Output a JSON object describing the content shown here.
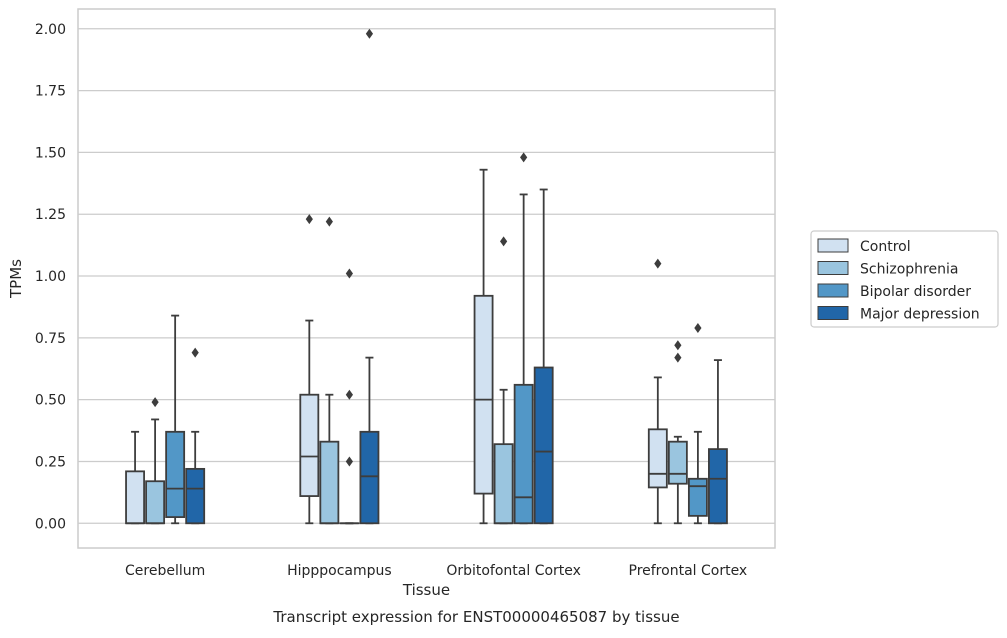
{
  "chart_data": {
    "type": "boxplot",
    "title": "",
    "caption": "Transcript expression for ENST00000465087 by tissue",
    "xlabel": "Tissue",
    "ylabel": "TPMs",
    "ylim": [
      -0.1,
      2.08
    ],
    "yticks": [
      "0.00",
      "0.25",
      "0.50",
      "0.75",
      "1.00",
      "1.25",
      "1.50",
      "1.75",
      "2.00"
    ],
    "grid": "horizontal",
    "legend_position": "outside-right",
    "categories": [
      "Cerebellum",
      "Hipppocampus",
      "Orbitofontal Cortex",
      "Prefrontal Cortex"
    ],
    "series": [
      {
        "name": "Control",
        "color": "#d1e1f1",
        "boxes": [
          {
            "whisker_low": 0,
            "q1": 0,
            "median": 0,
            "q3": 0.21,
            "whisker_high": 0.37,
            "outliers": []
          },
          {
            "whisker_low": 0,
            "q1": 0.11,
            "median": 0.27,
            "q3": 0.52,
            "whisker_high": 0.82,
            "outliers": [
              1.23
            ]
          },
          {
            "whisker_low": 0,
            "q1": 0.12,
            "median": 0.5,
            "q3": 0.92,
            "whisker_high": 1.43,
            "outliers": []
          },
          {
            "whisker_low": 0,
            "q1": 0.145,
            "median": 0.2,
            "q3": 0.38,
            "whisker_high": 0.59,
            "outliers": [
              1.05
            ]
          }
        ]
      },
      {
        "name": "Schizophrenia",
        "color": "#9ac5df",
        "boxes": [
          {
            "whisker_low": 0,
            "q1": 0,
            "median": 0,
            "q3": 0.17,
            "whisker_high": 0.42,
            "outliers": [
              0.49
            ]
          },
          {
            "whisker_low": 0,
            "q1": 0,
            "median": 0,
            "q3": 0.33,
            "whisker_high": 0.52,
            "outliers": [
              1.22
            ]
          },
          {
            "whisker_low": 0,
            "q1": 0,
            "median": 0,
            "q3": 0.32,
            "whisker_high": 0.54,
            "outliers": [
              1.14
            ]
          },
          {
            "whisker_low": 0,
            "q1": 0.16,
            "median": 0.2,
            "q3": 0.33,
            "whisker_high": 0.35,
            "outliers": [
              0.67,
              0.72
            ]
          }
        ]
      },
      {
        "name": "Bipolar disorder",
        "color": "#5297c7",
        "boxes": [
          {
            "whisker_low": 0,
            "q1": 0.025,
            "median": 0.14,
            "q3": 0.37,
            "whisker_high": 0.84,
            "outliers": []
          },
          {
            "whisker_low": 0,
            "q1": 0,
            "median": 0,
            "q3": 0,
            "whisker_high": 0,
            "outliers": [
              0.25,
              0.52,
              1.01
            ]
          },
          {
            "whisker_low": 0,
            "q1": 0,
            "median": 0.105,
            "q3": 0.56,
            "whisker_high": 1.33,
            "outliers": [
              1.48
            ]
          },
          {
            "whisker_low": 0,
            "q1": 0.03,
            "median": 0.15,
            "q3": 0.18,
            "whisker_high": 0.37,
            "outliers": [
              0.79
            ]
          }
        ]
      },
      {
        "name": "Major depression",
        "color": "#2166a8",
        "boxes": [
          {
            "whisker_low": 0,
            "q1": 0,
            "median": 0.14,
            "q3": 0.22,
            "whisker_high": 0.37,
            "outliers": [
              0.69
            ]
          },
          {
            "whisker_low": 0,
            "q1": 0,
            "median": 0.19,
            "q3": 0.37,
            "whisker_high": 0.67,
            "outliers": [
              1.98
            ]
          },
          {
            "whisker_low": 0,
            "q1": 0,
            "median": 0.29,
            "q3": 0.63,
            "whisker_high": 1.35,
            "outliers": []
          },
          {
            "whisker_low": 0,
            "q1": 0,
            "median": 0.18,
            "q3": 0.3,
            "whisker_high": 0.66,
            "outliers": []
          }
        ]
      }
    ]
  },
  "colors": {
    "grid": "#cccccc",
    "frame": "#cccccc",
    "box_edge": "#3d3d3d"
  }
}
